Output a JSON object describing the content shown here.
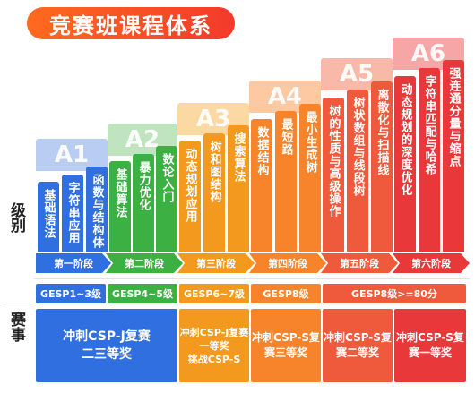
{
  "title": "竞赛班课程体系",
  "side_labels": {
    "level": "级别",
    "competition": "赛事"
  },
  "levels": [
    "A1",
    "A2",
    "A3",
    "A4",
    "A5",
    "A6"
  ],
  "bars": {
    "a1": [
      "基础语法",
      "字符串应用",
      "函数与结构体"
    ],
    "a2": [
      "基础算法",
      "暴力优化",
      "数论入门"
    ],
    "a3": [
      "动态规划应用",
      "树和图结构",
      "搜索算法"
    ],
    "a4": [
      "数据结构",
      "最短路",
      "最小生成树"
    ],
    "a5": [
      "树的性质与高级操作",
      "树状数组与线段树",
      "离散化与扫描线"
    ],
    "a6": [
      "动态规划的深度优化",
      "字符串匹配与哈希",
      "强连通分量与缩点"
    ]
  },
  "stages": [
    "第一阶段",
    "第二阶段",
    "第三阶段",
    "第四阶段",
    "第五阶段",
    "第六阶段"
  ],
  "gesp": [
    "GESP1~3级",
    "GESP4~5级",
    "GESP6~7级",
    "GESP8级",
    "GESP8级>=80分"
  ],
  "competitions": {
    "c1": [
      "冲刺CSP-J复赛",
      "二三等奖"
    ],
    "c2": [
      "冲刺CSP-J复赛",
      "一等奖",
      "挑战CSP-S"
    ],
    "c3": [
      "冲刺CSP-S复",
      "赛三等奖"
    ],
    "c4": [
      "冲刺CSP-S复",
      "赛二等奖"
    ],
    "c5": [
      "冲刺CSP-S复",
      "赛一等奖"
    ]
  },
  "colors": {
    "blue": "#2f6fe0",
    "blue_light": "#dbe6fb",
    "green": "#3cb043",
    "green_light": "#dcf1dc",
    "orange": "#f39a1e",
    "orange_light": "#fdebcd",
    "orange2": "#f7832a",
    "orange2_light": "#fde2cf",
    "red": "#f05a3c",
    "red_light": "#fdd9d2",
    "crimson": "#e8383a",
    "crimson_light": "#fbd3d3"
  }
}
